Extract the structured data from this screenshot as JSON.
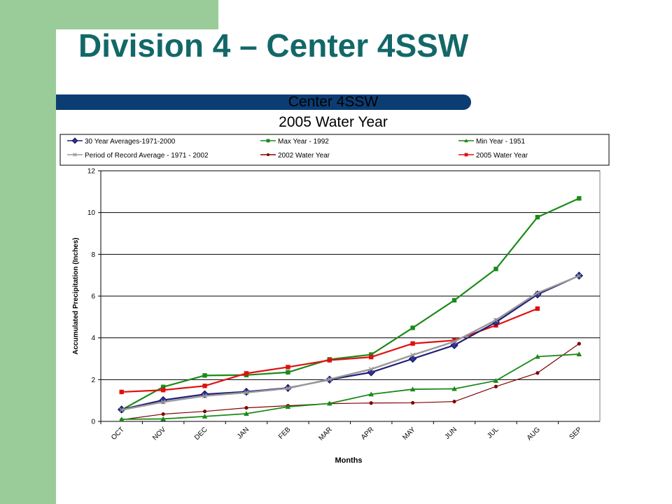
{
  "slide": {
    "title": "Division 4 – Center 4SSW"
  },
  "colors": {
    "sidebar": "#99cc99",
    "title": "#126868",
    "banner": "#0b3d73"
  },
  "chart_data": {
    "type": "line",
    "title": "Center 4SSW",
    "subtitle": "2005 Water Year",
    "xlabel": "Months",
    "ylabel": "Accumulated Precipitation (Inches)",
    "ylim": [
      0,
      12
    ],
    "yticks": [
      0,
      2,
      4,
      6,
      8,
      10,
      12
    ],
    "grid": true,
    "legend_position": "top",
    "categories": [
      "OCT",
      "NOV",
      "DEC",
      "JAN",
      "FEB",
      "MAR",
      "APR",
      "MAY",
      "JUN",
      "JUL",
      "AUG",
      "SEP"
    ],
    "series": [
      {
        "name": "30 Year Averages-1971-2000",
        "color": "#1f1f7a",
        "marker": "diamond",
        "values": [
          0.57,
          1.02,
          1.3,
          1.42,
          1.6,
          2.0,
          2.35,
          3.0,
          3.65,
          4.75,
          6.08,
          6.98
        ]
      },
      {
        "name": "Max Year - 1992",
        "color": "#1a8a1a",
        "marker": "square",
        "values": [
          0.55,
          1.65,
          2.2,
          2.22,
          2.35,
          2.97,
          3.2,
          4.48,
          5.8,
          7.3,
          9.78,
          10.68
        ]
      },
      {
        "name": "Min Year - 1951",
        "color": "#1a8a1a",
        "marker": "triangle",
        "values": [
          0.1,
          0.12,
          0.24,
          0.37,
          0.7,
          0.86,
          1.3,
          1.54,
          1.56,
          1.95,
          3.1,
          3.22
        ]
      },
      {
        "name": "Period of Record Average - 1971 - 2002",
        "color": "#999999",
        "marker": "x",
        "values": [
          0.55,
          0.93,
          1.22,
          1.38,
          1.58,
          2.02,
          2.5,
          3.18,
          3.82,
          4.85,
          6.15,
          6.97
        ]
      },
      {
        "name": "2002 Water Year",
        "color": "#800000",
        "marker": "circle",
        "values": [
          0.08,
          0.35,
          0.48,
          0.65,
          0.75,
          0.85,
          0.88,
          0.89,
          0.95,
          1.67,
          2.32,
          3.72
        ]
      },
      {
        "name": "2005 Water Year",
        "color": "#e01010",
        "marker": "square",
        "values": [
          1.41,
          1.5,
          1.7,
          2.3,
          2.6,
          2.93,
          3.08,
          3.73,
          3.88,
          4.6,
          5.4,
          null
        ]
      }
    ]
  }
}
